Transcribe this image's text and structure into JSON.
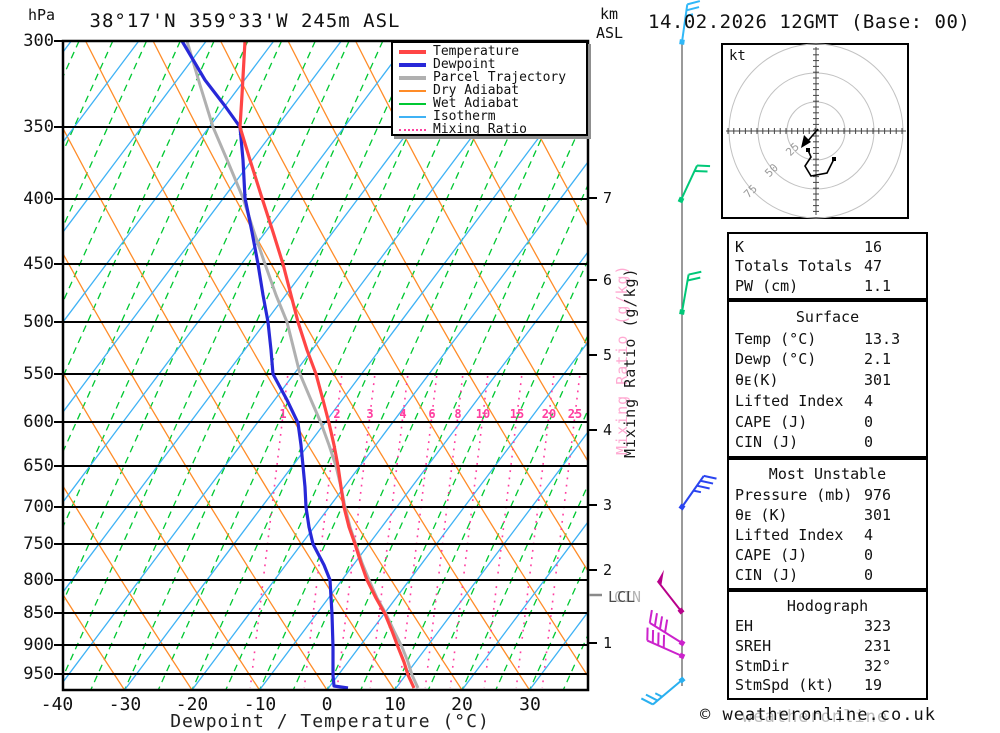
{
  "colors": {
    "temperature": "#ff4545",
    "dewpoint": "#2828d8",
    "parcel": "#b0b0b0",
    "dry_adiabat": "#ff8c28",
    "wet_adiabat": "#00c832",
    "isotherm": "#3fb2f5",
    "mixing_ratio": "#ff3fa0",
    "barb_staff": "#787878"
  },
  "header": {
    "pressure_unit": "hPa",
    "title": "38°17'N 359°33'W 245m ASL",
    "altitude_unit_line1": "km",
    "altitude_unit_line2": "ASL",
    "date_line": "14.02.2026 12GMT (Base: 00)"
  },
  "axes": {
    "pressure_ticks": [
      "300",
      "350",
      "400",
      "450",
      "500",
      "550",
      "600",
      "650",
      "700",
      "750",
      "800",
      "850",
      "900",
      "950"
    ],
    "temp_ticks": [
      "-40",
      "-30",
      "-20",
      "-10",
      "0",
      "10",
      "20",
      "30"
    ],
    "x_label": "Dewpoint / Temperature (°C)",
    "km_ticks": [
      "7",
      "6",
      "5",
      "4",
      "3",
      "2",
      "1"
    ],
    "mixing_axis_label": "Mixing Ratio (g/kg)",
    "mixing_ratio_labels": [
      "1",
      "2",
      "3",
      "4",
      "6",
      "8",
      "10",
      "15",
      "20",
      "25"
    ],
    "lcl_label": "LCL",
    "lcl_ghost": "CIN"
  },
  "legend": {
    "items": [
      {
        "label": "Temperature"
      },
      {
        "label": "Dewpoint"
      },
      {
        "label": "Parcel Trajectory"
      },
      {
        "label": "Dry Adiabat"
      },
      {
        "label": "Wet Adiabat"
      },
      {
        "label": "Isotherm"
      },
      {
        "label": "Mixing Ratio"
      }
    ]
  },
  "hodograph_panel": {
    "unit_label": "kt",
    "ring_labels": [
      "25",
      "50",
      "75"
    ]
  },
  "tables": {
    "indices": {
      "rows": [
        [
          "K",
          "16"
        ],
        [
          "Totals Totals",
          "47"
        ],
        [
          "PW (cm)",
          "1.1"
        ]
      ]
    },
    "surface": {
      "header": "Surface",
      "rows": [
        [
          "Temp (°C)",
          "13.3"
        ],
        [
          "Dewp (°C)",
          "2.1"
        ],
        [
          "θᴇ(K)",
          "301"
        ],
        [
          "Lifted Index",
          "4"
        ],
        [
          "CAPE (J)",
          "0"
        ],
        [
          "CIN (J)",
          "0"
        ]
      ]
    },
    "most_unstable": {
      "header": "Most Unstable",
      "rows": [
        [
          "Pressure (mb)",
          "976"
        ],
        [
          "θᴇ (K)",
          "301"
        ],
        [
          "Lifted Index",
          "4"
        ],
        [
          "CAPE (J)",
          "0"
        ],
        [
          "CIN (J)",
          "0"
        ]
      ]
    },
    "hodograph_stats": {
      "header": "Hodograph",
      "rows": [
        [
          "EH",
          "323"
        ],
        [
          "SREH",
          "231"
        ],
        [
          "StmDir",
          "32°"
        ],
        [
          "StmSpd (kt)",
          "19"
        ]
      ]
    }
  },
  "footer": {
    "copyright": "© weatheronline.co.uk",
    "copyright_ghost": "weatheronline"
  },
  "chart_data": {
    "type": "skewt-sounding",
    "title": "38°17'N 359°33'W 245m ASL",
    "station_elevation_m": 245,
    "valid": "14.02.2026 12GMT (Base: 00)",
    "pressure_axis_hPa": [
      300,
      350,
      400,
      450,
      500,
      550,
      600,
      650,
      700,
      750,
      800,
      850,
      900,
      950
    ],
    "temp_axis_C": [
      -40,
      -30,
      -20,
      -10,
      0,
      10,
      20,
      30
    ],
    "km_asl_axis": [
      1,
      2,
      3,
      4,
      5,
      6,
      7
    ],
    "mixing_ratio_lines_g_kg": [
      1,
      2,
      3,
      4,
      6,
      8,
      10,
      15,
      20,
      25
    ],
    "profile": {
      "pressure_hPa": [
        976,
        950,
        900,
        850,
        800,
        750,
        700,
        650,
        600,
        550,
        500,
        450,
        400,
        350,
        300
      ],
      "temperature_C": [
        13.3,
        10.5,
        6,
        0.5,
        -6,
        -12,
        -18,
        -23,
        -29,
        -36,
        -45,
        -54,
        -64,
        -52,
        -58
      ],
      "dewpoint_C": [
        2.1,
        1,
        0.5,
        -1,
        -7,
        -14,
        -23,
        -28,
        -33,
        -42,
        -49,
        -57,
        -66,
        -52,
        -67
      ],
      "parcel_C": [
        13.9,
        11,
        6.5,
        0.6,
        -6,
        -12,
        -18,
        -23,
        -30,
        -38,
        -47,
        -57,
        -67,
        -62,
        -67
      ]
    },
    "indices": {
      "K": 16,
      "Totals_Totals": 47,
      "PW_cm": 1.1
    },
    "surface": {
      "Temp_C": 13.3,
      "Dewp_C": 2.1,
      "ThetaE_K": 301,
      "Lifted_Index": 4,
      "CAPE_J": 0,
      "CIN_J": 0
    },
    "most_unstable": {
      "Pressure_mb": 976,
      "ThetaE_K": 301,
      "Lifted_Index": 4,
      "CAPE_J": 0,
      "CIN_J": 0
    },
    "hodograph": {
      "EH": 323,
      "SREH": 231,
      "StmDir_deg": 32,
      "StmSpd_kt": 19,
      "rings_kt": [
        25,
        50,
        75
      ]
    },
    "wind_barbs": [
      {
        "p_hPa": 300,
        "color": "cyan",
        "speed_kt": 25
      },
      {
        "p_hPa": 400,
        "color": "green",
        "speed_kt": 20
      },
      {
        "p_hPa": 490,
        "color": "green",
        "speed_kt": 20
      },
      {
        "p_hPa": 700,
        "color": "blue",
        "speed_kt": 35
      },
      {
        "p_hPa": 845,
        "color": "purple",
        "speed_kt": 50
      },
      {
        "p_hPa": 900,
        "color": "magenta",
        "speed_kt": 40
      },
      {
        "p_hPa": 920,
        "color": "magenta",
        "speed_kt": 40
      },
      {
        "p_hPa": 960,
        "color": "cyan",
        "speed_kt": 20
      }
    ],
    "annotations": [
      "LCL"
    ],
    "legend_position": "top-right",
    "grid": true
  }
}
